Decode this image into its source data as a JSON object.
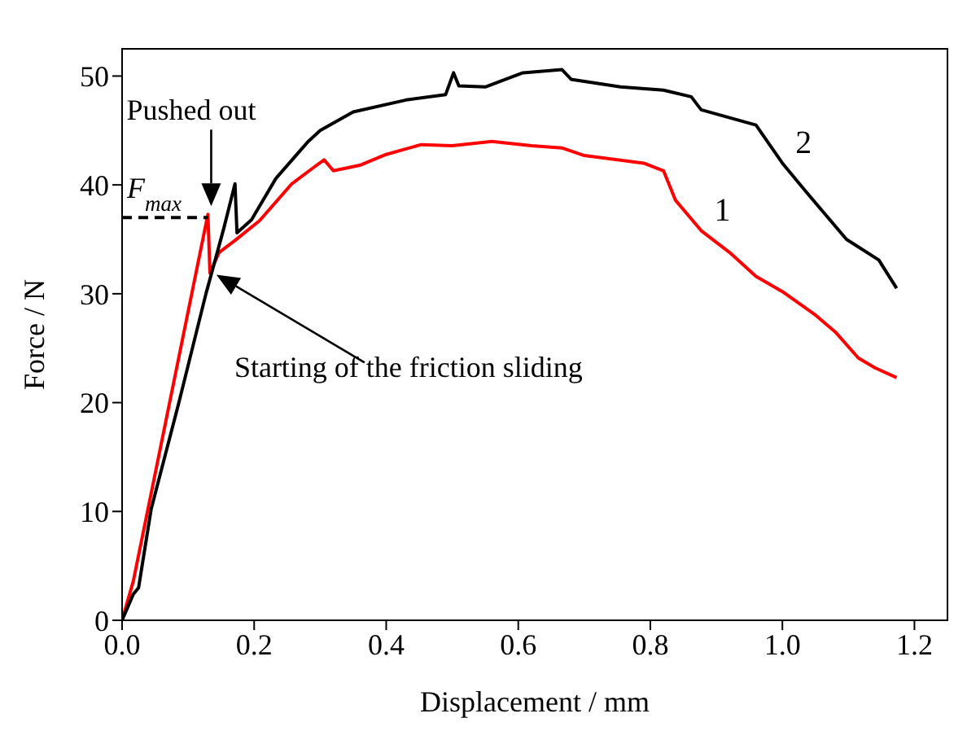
{
  "chart_data": {
    "type": "line",
    "xlabel": "Displacement / mm",
    "ylabel": "Force / N",
    "xlim": [
      0,
      1.25
    ],
    "ylim": [
      0,
      52.5
    ],
    "xticks": [
      {
        "value": 0,
        "label": "0.0"
      },
      {
        "value": 0.2,
        "label": "0.2"
      },
      {
        "value": 0.4,
        "label": "0.4"
      },
      {
        "value": 0.6,
        "label": "0.6"
      },
      {
        "value": 0.8,
        "label": "0.8"
      },
      {
        "value": 1,
        "label": "1.0"
      },
      {
        "value": 1.2,
        "label": "1.2"
      }
    ],
    "yticks": [
      0,
      10,
      20,
      30,
      40,
      50
    ],
    "legend": false,
    "marker": "none",
    "line_style": "solid",
    "series": [
      {
        "name": "1",
        "color": "#ff0000",
        "x": [
          0,
          0.017,
          0.02,
          0.13,
          0.133,
          0.147,
          0.171,
          0.208,
          0.257,
          0.29,
          0.306,
          0.32,
          0.36,
          0.4,
          0.453,
          0.5,
          0.56,
          0.62,
          0.666,
          0.7,
          0.79,
          0.82,
          0.838,
          0.877,
          0.92,
          0.96,
          1.0,
          1.049,
          1.08,
          1.115,
          1.14,
          1.173
        ],
        "values": [
          0,
          3.6,
          4.5,
          37.3,
          31.9,
          33.8,
          34.9,
          36.7,
          40.1,
          41.6,
          42.3,
          41.3,
          41.8,
          42.8,
          43.7,
          43.6,
          44,
          43.6,
          43.4,
          42.7,
          42,
          41.3,
          38.6,
          35.8,
          33.8,
          31.6,
          30.2,
          28.1,
          26.5,
          24.1,
          23.2,
          22.3
        ]
      },
      {
        "name": "2",
        "color": "#000000",
        "x": [
          0,
          0.017,
          0.025,
          0.044,
          0.086,
          0.127,
          0.154,
          0.171,
          0.174,
          0.196,
          0.233,
          0.282,
          0.3,
          0.35,
          0.43,
          0.49,
          0.502,
          0.51,
          0.55,
          0.607,
          0.666,
          0.68,
          0.755,
          0.82,
          0.862,
          0.877,
          0.96,
          1.0,
          1.034,
          1.097,
          1.146,
          1.173
        ],
        "values": [
          0,
          2.4,
          3,
          10.2,
          20,
          30,
          36,
          40.1,
          35.6,
          36.8,
          40.6,
          44,
          45,
          46.7,
          47.8,
          48.3,
          50.3,
          49.1,
          49,
          50.3,
          50.6,
          49.7,
          49,
          48.7,
          48.1,
          46.9,
          45.5,
          42,
          39.5,
          35,
          33.1,
          30.5
        ]
      },
      {
        "type": "line",
        "line_style": "dashed",
        "color": "#000000",
        "x": [
          0,
          0.13
        ],
        "values": [
          37,
          37
        ]
      }
    ],
    "annotations": [
      {
        "text": "Pushed out",
        "x": 0.13,
        "y": 37.3
      },
      {
        "text": "F$_{max}$",
        "x": 0,
        "y": 37
      },
      {
        "text": "Starting of the friction sliding",
        "x": 0.133,
        "y": 31.9
      }
    ]
  }
}
